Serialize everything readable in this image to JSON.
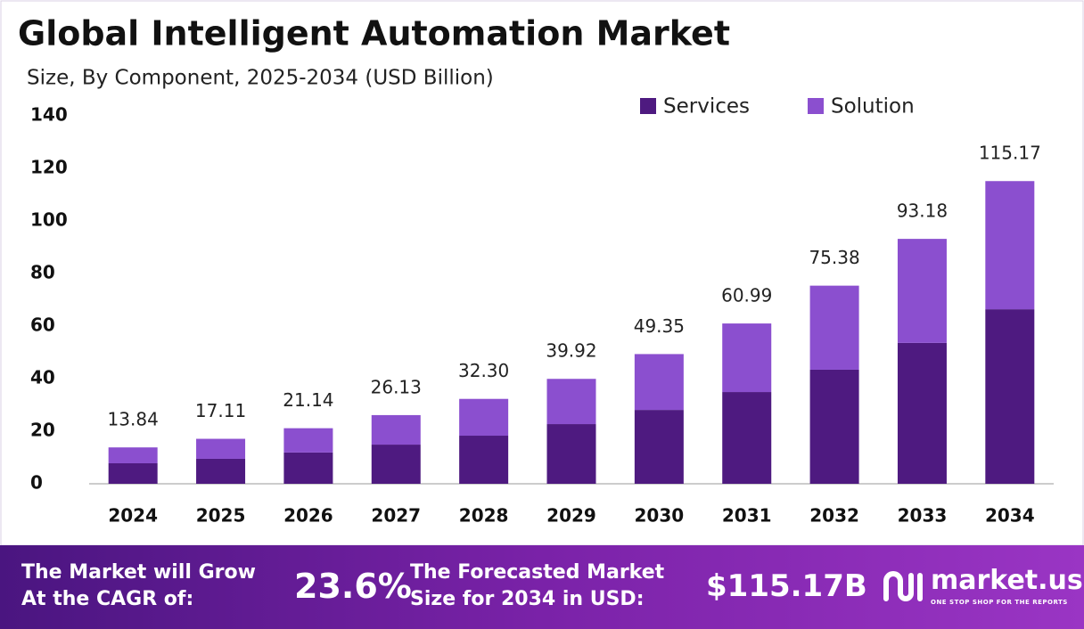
{
  "chart_data": {
    "type": "stacked_bar",
    "title": "Global Intelligent Automation Market",
    "subtitle": "Size, By Component, 2025-2034 (USD Billion)",
    "categories": [
      "2024",
      "2025",
      "2026",
      "2027",
      "2028",
      "2029",
      "2030",
      "2031",
      "2032",
      "2033",
      "2034"
    ],
    "series": [
      {
        "name": "Services",
        "color": "#4e1a80",
        "values": [
          7.8,
          9.5,
          11.9,
          14.9,
          18.3,
          22.7,
          28.1,
          34.9,
          43.4,
          53.6,
          66.4
        ]
      },
      {
        "name": "Solution",
        "color": "#8b4fcf",
        "values": [
          6.04,
          7.61,
          9.24,
          11.23,
          14.0,
          17.22,
          21.25,
          26.09,
          31.98,
          39.58,
          48.77
        ]
      }
    ],
    "totals": [
      13.84,
      17.11,
      21.14,
      26.13,
      32.3,
      39.92,
      49.35,
      60.99,
      75.38,
      93.18,
      115.17
    ],
    "total_labels": [
      "13.84",
      "17.11",
      "21.14",
      "26.13",
      "32.30",
      "39.92",
      "49.35",
      "60.99",
      "75.38",
      "93.18",
      "115.17"
    ],
    "ylim": [
      0,
      140
    ],
    "yticks": [
      0,
      20,
      40,
      60,
      80,
      100,
      120,
      140
    ],
    "grid": false,
    "legend": "top-right"
  },
  "footer": {
    "cagr_label": [
      "The Market will Grow",
      "At the CAGR of:"
    ],
    "cagr": "23.6%",
    "forecast_label": [
      "The Forecasted Market",
      "Size for 2034 in USD:"
    ],
    "forecast": "$115.17B",
    "brand": "market.us",
    "tagline": "ONE STOP SHOP FOR THE REPORTS"
  }
}
